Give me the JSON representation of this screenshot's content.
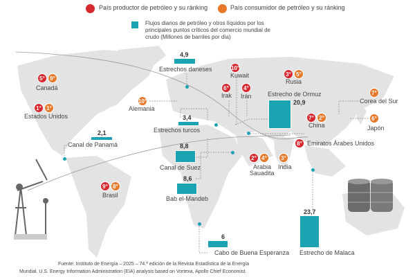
{
  "colors": {
    "producer": "#d7282f",
    "consumer": "#e8782a",
    "flow": "#1ba3b2",
    "land": "#e3e3e3"
  },
  "legend": {
    "producer": "País productor de petróleo y su ránking",
    "consumer": "País consumidor de petróleo y su ránking",
    "flow": "Flujos diarios de petróleo y otros líquidos por los principales puntos críticos del comercio mundial de crudo (Millones de barriles por día)"
  },
  "countries": {
    "canada": {
      "name": "Canadá",
      "producer": "5°",
      "consumer": "9°"
    },
    "usa": {
      "name": "Estados Unidos",
      "producer": "1°",
      "consumer": "1°"
    },
    "germany": {
      "name": "Alemania",
      "consumer": "10°"
    },
    "kuwait": {
      "name": "Kuwait",
      "producer": "10°"
    },
    "iraq": {
      "name": "Irak",
      "producer": "6°"
    },
    "iran": {
      "name": "Irán",
      "producer": "4°"
    },
    "russia": {
      "name": "Rusia",
      "producer": "3°",
      "consumer": "5°"
    },
    "china": {
      "name": "China",
      "producer": "7°",
      "consumer": "2°"
    },
    "korea": {
      "name": "Corea del Sur",
      "consumer": "7°"
    },
    "japan": {
      "name": "Japón",
      "consumer": "6°"
    },
    "uae": {
      "name": "Emiratos Árabes Unidos",
      "producer": "8°"
    },
    "saudi": {
      "name1": "Arabia",
      "name2": "Sauadita",
      "producer": "2°",
      "consumer": "4°"
    },
    "india": {
      "name": "India",
      "consumer": "3°"
    },
    "brazil": {
      "name": "Brasil",
      "producer": "9°",
      "consumer": "8°"
    }
  },
  "chokepoints": {
    "danish": {
      "name": "Estrechos daneses",
      "value": "4,9"
    },
    "turkish": {
      "name": "Estrechos turcos",
      "value": "3,4"
    },
    "panama": {
      "name": "Canal de Panamá",
      "value": "2,1"
    },
    "suez": {
      "name": "Canal de Suez",
      "value": "8,8"
    },
    "bab": {
      "name": "Bab el-Mandeb",
      "value": "8,6"
    },
    "cape": {
      "name": "Cabo de Buena Esperanza",
      "value": "6"
    },
    "malacca": {
      "name": "Estrecho de Malaca",
      "value": "23,7"
    },
    "hormuz": {
      "name": "Estrecho de Ormuz",
      "value": "20,9"
    }
  },
  "footnote": {
    "line1": "Fuente:  Instituto de Energía – 2025 – 74.ª edición de la Revista Estadística de la Energía",
    "line2": "Mundial. U.S. Energy Information Administration (EIA) analysis based on Vortexa, Apollo Chief Economist."
  }
}
